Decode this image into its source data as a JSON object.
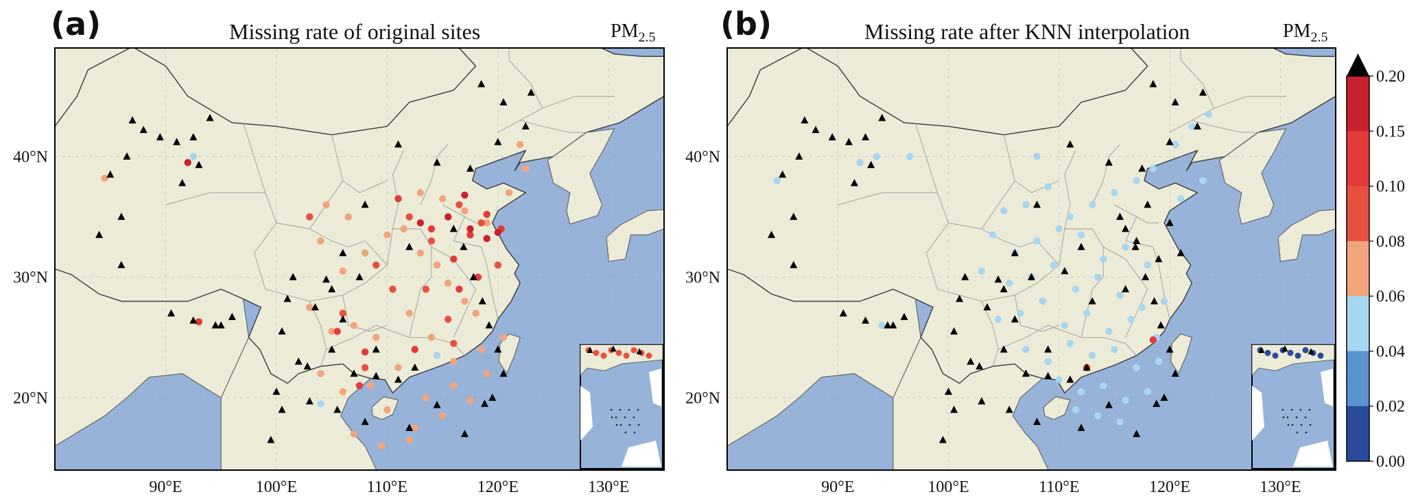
{
  "panels": [
    {
      "label": "(a)",
      "title": "Missing rate of original sites",
      "pollutant": "PM",
      "pollutant_sub": "2.5"
    },
    {
      "label": "(b)",
      "title": "Missing rate after KNN interpolation",
      "pollutant": "PM",
      "pollutant_sub": "2.5"
    }
  ],
  "map_axes": {
    "lon_ticks": [
      "90°E",
      "100°E",
      "110°E",
      "120°E",
      "130°E"
    ],
    "lat_ticks": [
      "40°N",
      "30°N",
      "20°N"
    ]
  },
  "colors": {
    "ocean": "#97b3d9",
    "land": "#ecebd8",
    "border": "#555555",
    "province": "#9a9a9a",
    "black_marker": "#000000"
  },
  "colorbar": {
    "ticks": [
      "0.20",
      "0.15",
      "0.10",
      "0.08",
      "0.06",
      "0.04",
      "0.02",
      "0.00"
    ],
    "bins": [
      {
        "range": "0.00-0.02",
        "color": "#2a4a9b"
      },
      {
        "range": "0.02-0.04",
        "color": "#5a92cf"
      },
      {
        "range": "0.04-0.06",
        "color": "#a6d7ef"
      },
      {
        "range": "0.06-0.08",
        "color": "#f1a57d"
      },
      {
        "range": "0.08-0.10",
        "color": "#e6513f"
      },
      {
        "range": "0.10-0.15",
        "color": "#e23b39"
      },
      {
        "range": "0.15-0.20",
        "color": "#c8212f"
      }
    ],
    "extend": "max",
    "extend_color": "#000000"
  },
  "chart_data": [
    {
      "type": "scatter",
      "title": "Missing rate of original sites",
      "xlabel": "",
      "ylabel": "",
      "xlim": [
        80,
        135
      ],
      "ylim": [
        14,
        49
      ],
      "series": [
        {
          "name": "0.06-0.08",
          "x": [
            84.5,
            104,
            106,
            108,
            110,
            111.5,
            113,
            114.5,
            115.5,
            117,
            118,
            103,
            105,
            107,
            109,
            112,
            114,
            116,
            118.5,
            121,
            122.5,
            104,
            106,
            108.5,
            111,
            113.5,
            116,
            117.5,
            119,
            120.5,
            110,
            112.5,
            115,
            107,
            109.5,
            112,
            104.5,
            106.5,
            113,
            115,
            117,
            119,
            122
          ],
          "y": [
            38.2,
            33,
            30.5,
            32,
            33.5,
            34,
            32,
            31,
            29.5,
            28,
            27,
            27.5,
            25.5,
            26,
            25,
            27,
            25,
            23,
            24,
            37,
            39,
            22,
            20.5,
            21,
            22.5,
            20,
            21,
            19.8,
            22,
            25,
            19,
            17.5,
            18.5,
            17,
            16,
            16.5,
            36,
            35,
            37,
            36.5,
            35.5,
            34.5,
            41
          ]
        },
        {
          "name": "0.08-0.10",
          "x": [
            103,
            109,
            112,
            114,
            116.5,
            118.5,
            106,
            110.5,
            113.5,
            115.5,
            120,
            116,
            108
          ],
          "y": [
            35,
            31,
            35,
            33,
            36,
            34.5,
            27,
            29,
            29,
            26.5,
            31,
            24.5,
            22.5
          ]
        },
        {
          "name": "0.10-0.15",
          "x": [
            93,
            105.5,
            111,
            114,
            116,
            117.5,
            119,
            120.3,
            108,
            112.5,
            118.2,
            116.5,
            107.5
          ],
          "y": [
            26.3,
            25.5,
            36.5,
            34,
            31.5,
            33.5,
            35.2,
            34,
            23.8,
            24,
            30,
            29,
            21
          ]
        },
        {
          "name": "0.15-0.20",
          "x": [
            92,
            113,
            115.5,
            117.5,
            119,
            120,
            117
          ],
          "y": [
            39.5,
            34.5,
            35,
            34,
            33.2,
            33.7,
            36.8
          ]
        },
        {
          "name": "0.04-0.06",
          "x": [
            92.5,
            114.5,
            104
          ],
          "y": [
            40,
            23.5,
            19.5
          ]
        },
        {
          "name": "> 0.20",
          "x": [
            87,
            88,
            89.5,
            91,
            92.5,
            94,
            86.5,
            85,
            86,
            91.5,
            93,
            84,
            86,
            90.5,
            92.5,
            95,
            118.5,
            120.5,
            122.5,
            123,
            120,
            117.5,
            114.5,
            111,
            108,
            106,
            112,
            107.5,
            105,
            103.5,
            101.5,
            101,
            100.5,
            102,
            105,
            107,
            109,
            100,
            103,
            105.5,
            108,
            112,
            117,
            118.8,
            119.5,
            120.5,
            120,
            119.2,
            118.6,
            117.8,
            116.9,
            116,
            114.5,
            112.5,
            111,
            109,
            106,
            104.5,
            102.8,
            100.5,
            99.5,
            94.5,
            96
          ],
          "y": [
            43,
            42.2,
            41.6,
            41.2,
            41.6,
            43.2,
            40,
            38.5,
            35,
            37.8,
            39.3,
            33.5,
            31,
            27,
            26.4,
            26,
            46,
            44.5,
            42.5,
            45.3,
            41.2,
            39,
            39.5,
            41,
            36,
            32,
            32.5,
            30,
            29,
            27.5,
            30,
            28.2,
            25.5,
            23,
            24,
            22,
            21.8,
            20.5,
            19.7,
            19,
            18,
            17.5,
            17,
            19.5,
            20,
            22,
            24,
            26,
            28,
            30,
            32.5,
            34,
            19.4,
            22.5,
            21.5,
            24,
            26.5,
            29.8,
            22.6,
            19,
            16.5,
            26,
            26.7
          ]
        }
      ]
    },
    {
      "type": "scatter",
      "title": "Missing rate after KNN interpolation",
      "xlabel": "",
      "ylabel": "",
      "xlim": [
        80,
        135
      ],
      "ylim": [
        14,
        49
      ],
      "series": [
        {
          "name": "0.04-0.06",
          "x": [
            84.5,
            92,
            93.5,
            105,
            107,
            109,
            111,
            113,
            115,
            117,
            118.5,
            120.5,
            122,
            123.5,
            104,
            106,
            108,
            110,
            112,
            114,
            116,
            118,
            103,
            105.5,
            107.5,
            109.5,
            111.5,
            113.5,
            115.5,
            117.5,
            119.5,
            104.5,
            106.5,
            108.5,
            110.5,
            112.5,
            114.5,
            116.5,
            118.8,
            107,
            109,
            111,
            113,
            115,
            117,
            119,
            110,
            112,
            114,
            116,
            118,
            121,
            123,
            94,
            111.5,
            113.5,
            115.5,
            96.5,
            108
          ],
          "y": [
            38,
            39.5,
            40,
            35.5,
            36,
            37.5,
            35,
            36,
            37,
            38,
            39,
            41,
            42.5,
            43.5,
            33.5,
            32,
            33,
            34,
            33.5,
            31.5,
            32.5,
            31,
            30.5,
            29.5,
            30,
            31,
            29,
            30,
            28.5,
            27.5,
            28,
            26.5,
            27,
            28,
            26,
            27,
            25.5,
            26.5,
            25,
            24,
            23,
            24.5,
            23.5,
            24,
            22.5,
            23,
            21.5,
            20.5,
            21,
            19.8,
            20.5,
            36.5,
            38,
            26,
            19,
            18.5,
            18,
            40,
            40
          ]
        },
        {
          "name": "0.10-0.15",
          "x": [
            112.5,
            118.5
          ],
          "y": [
            22.5,
            24.8
          ]
        },
        {
          "name": "> 0.20",
          "x": [
            87,
            88,
            89.5,
            91,
            92.5,
            94,
            86.5,
            85,
            86,
            91.5,
            93,
            84,
            86,
            90.5,
            92.5,
            95,
            118.5,
            120.5,
            122.5,
            123,
            120,
            117.5,
            114.5,
            111,
            108,
            106,
            112,
            107.5,
            105,
            103.5,
            101.5,
            101,
            100.5,
            102,
            105,
            107,
            109,
            100,
            103,
            105.5,
            108,
            112,
            117,
            118.8,
            119.5,
            120.5,
            120,
            119.2,
            118.6,
            117.8,
            116.9,
            116,
            114.5,
            112.5,
            111,
            109,
            106,
            104.5,
            102.8,
            100.5,
            99.5,
            94.5,
            96,
            115.5,
            117,
            119,
            116,
            113,
            110.5,
            118,
            120,
            121
          ],
          "y": [
            43,
            42.2,
            41.6,
            41.2,
            41.6,
            43.2,
            40,
            38.5,
            35,
            37.8,
            39.3,
            33.5,
            31,
            27,
            26.4,
            26,
            46,
            44.5,
            42.5,
            45.3,
            41.2,
            39,
            39.5,
            41,
            36,
            32,
            32.5,
            30,
            29,
            27.5,
            30,
            28.2,
            25.5,
            23,
            24,
            22,
            21.8,
            20.5,
            19.7,
            19,
            18,
            17.5,
            17,
            19.5,
            20,
            22,
            24,
            26,
            28,
            30,
            32.5,
            34,
            19.4,
            22.5,
            21.5,
            24,
            26.5,
            29.8,
            22.6,
            19,
            16.5,
            26,
            26.7,
            35,
            33,
            31.5,
            29,
            28,
            30.5,
            36,
            34.5,
            32
          ]
        }
      ]
    }
  ]
}
